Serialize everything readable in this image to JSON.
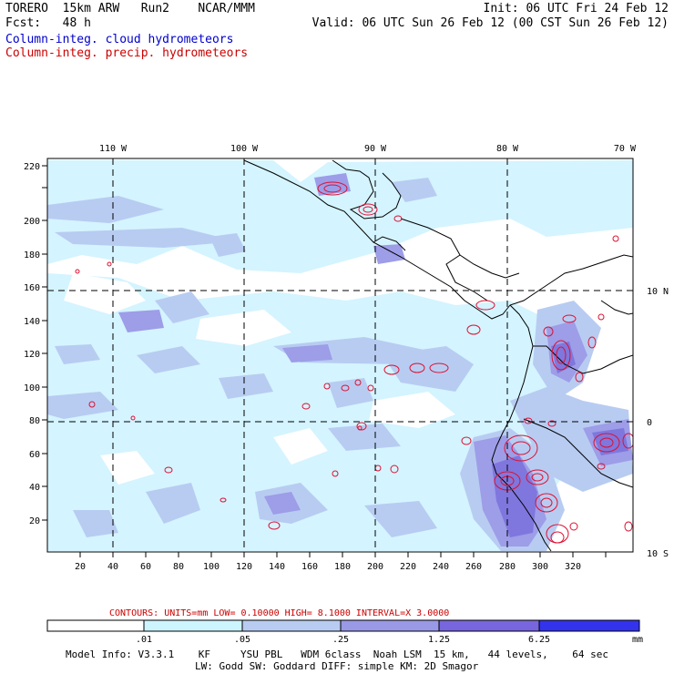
{
  "header": {
    "line1_left": "TORERO  15km ARW   Run2    NCAR/MMM",
    "line1_right": "Init: 06 UTC Fri 24 Feb 12",
    "line2_left": "Fcst:   48 h",
    "line2_right": "Valid: 06 UTC Sun 26 Feb 12 (00 CST Sun 26 Feb 12)",
    "line3": "Column-integ. cloud hydrometeors",
    "line4": "Column-integ. precip. hydrometeors"
  },
  "axes": {
    "x_ticks": [
      "20",
      "40",
      "60",
      "80",
      "100",
      "120",
      "140",
      "160",
      "180",
      "200",
      "220",
      "240",
      "260",
      "280",
      "300",
      "320"
    ],
    "y_ticks": [
      "20",
      "40",
      "60",
      "80",
      "100",
      "120",
      "140",
      "160",
      "180",
      "200",
      "220"
    ],
    "lon_labels": [
      "110 W",
      "100 W",
      "90 W",
      "80 W",
      "70 W"
    ],
    "lat_labels": [
      "10 N",
      "0",
      "10 S"
    ]
  },
  "contours_line": {
    "text": "CONTOURS:  UNITS=mm  LOW= 0.10000     HIGH=  8.1000     INTERVAL=X  3.0000"
  },
  "colorbar": {
    "labels": [
      ".01",
      ".05",
      ".25",
      "1.25",
      "6.25"
    ],
    "unit": "mm",
    "colors": [
      "#ffffff",
      "#ccf5ff",
      "#b8ccf2",
      "#9999e6",
      "#7766dd",
      "#5544ee",
      "#2222ff"
    ]
  },
  "footer": {
    "line1": "Model Info: V3.3.1    KF     YSU PBL   WDM 6class  Noah LSM  15 km,   44 levels,    64 sec",
    "line2": "LW: Godd SW: Goddard DIFF: simple KM: 2D Smagor"
  },
  "style": {
    "cloud_light": "#d4f4ff",
    "cloud_mid": "#b8ccf2",
    "cloud_dark": "#9d9de8",
    "cloud_darker": "#7f77dd",
    "precip": "#dd1133"
  }
}
